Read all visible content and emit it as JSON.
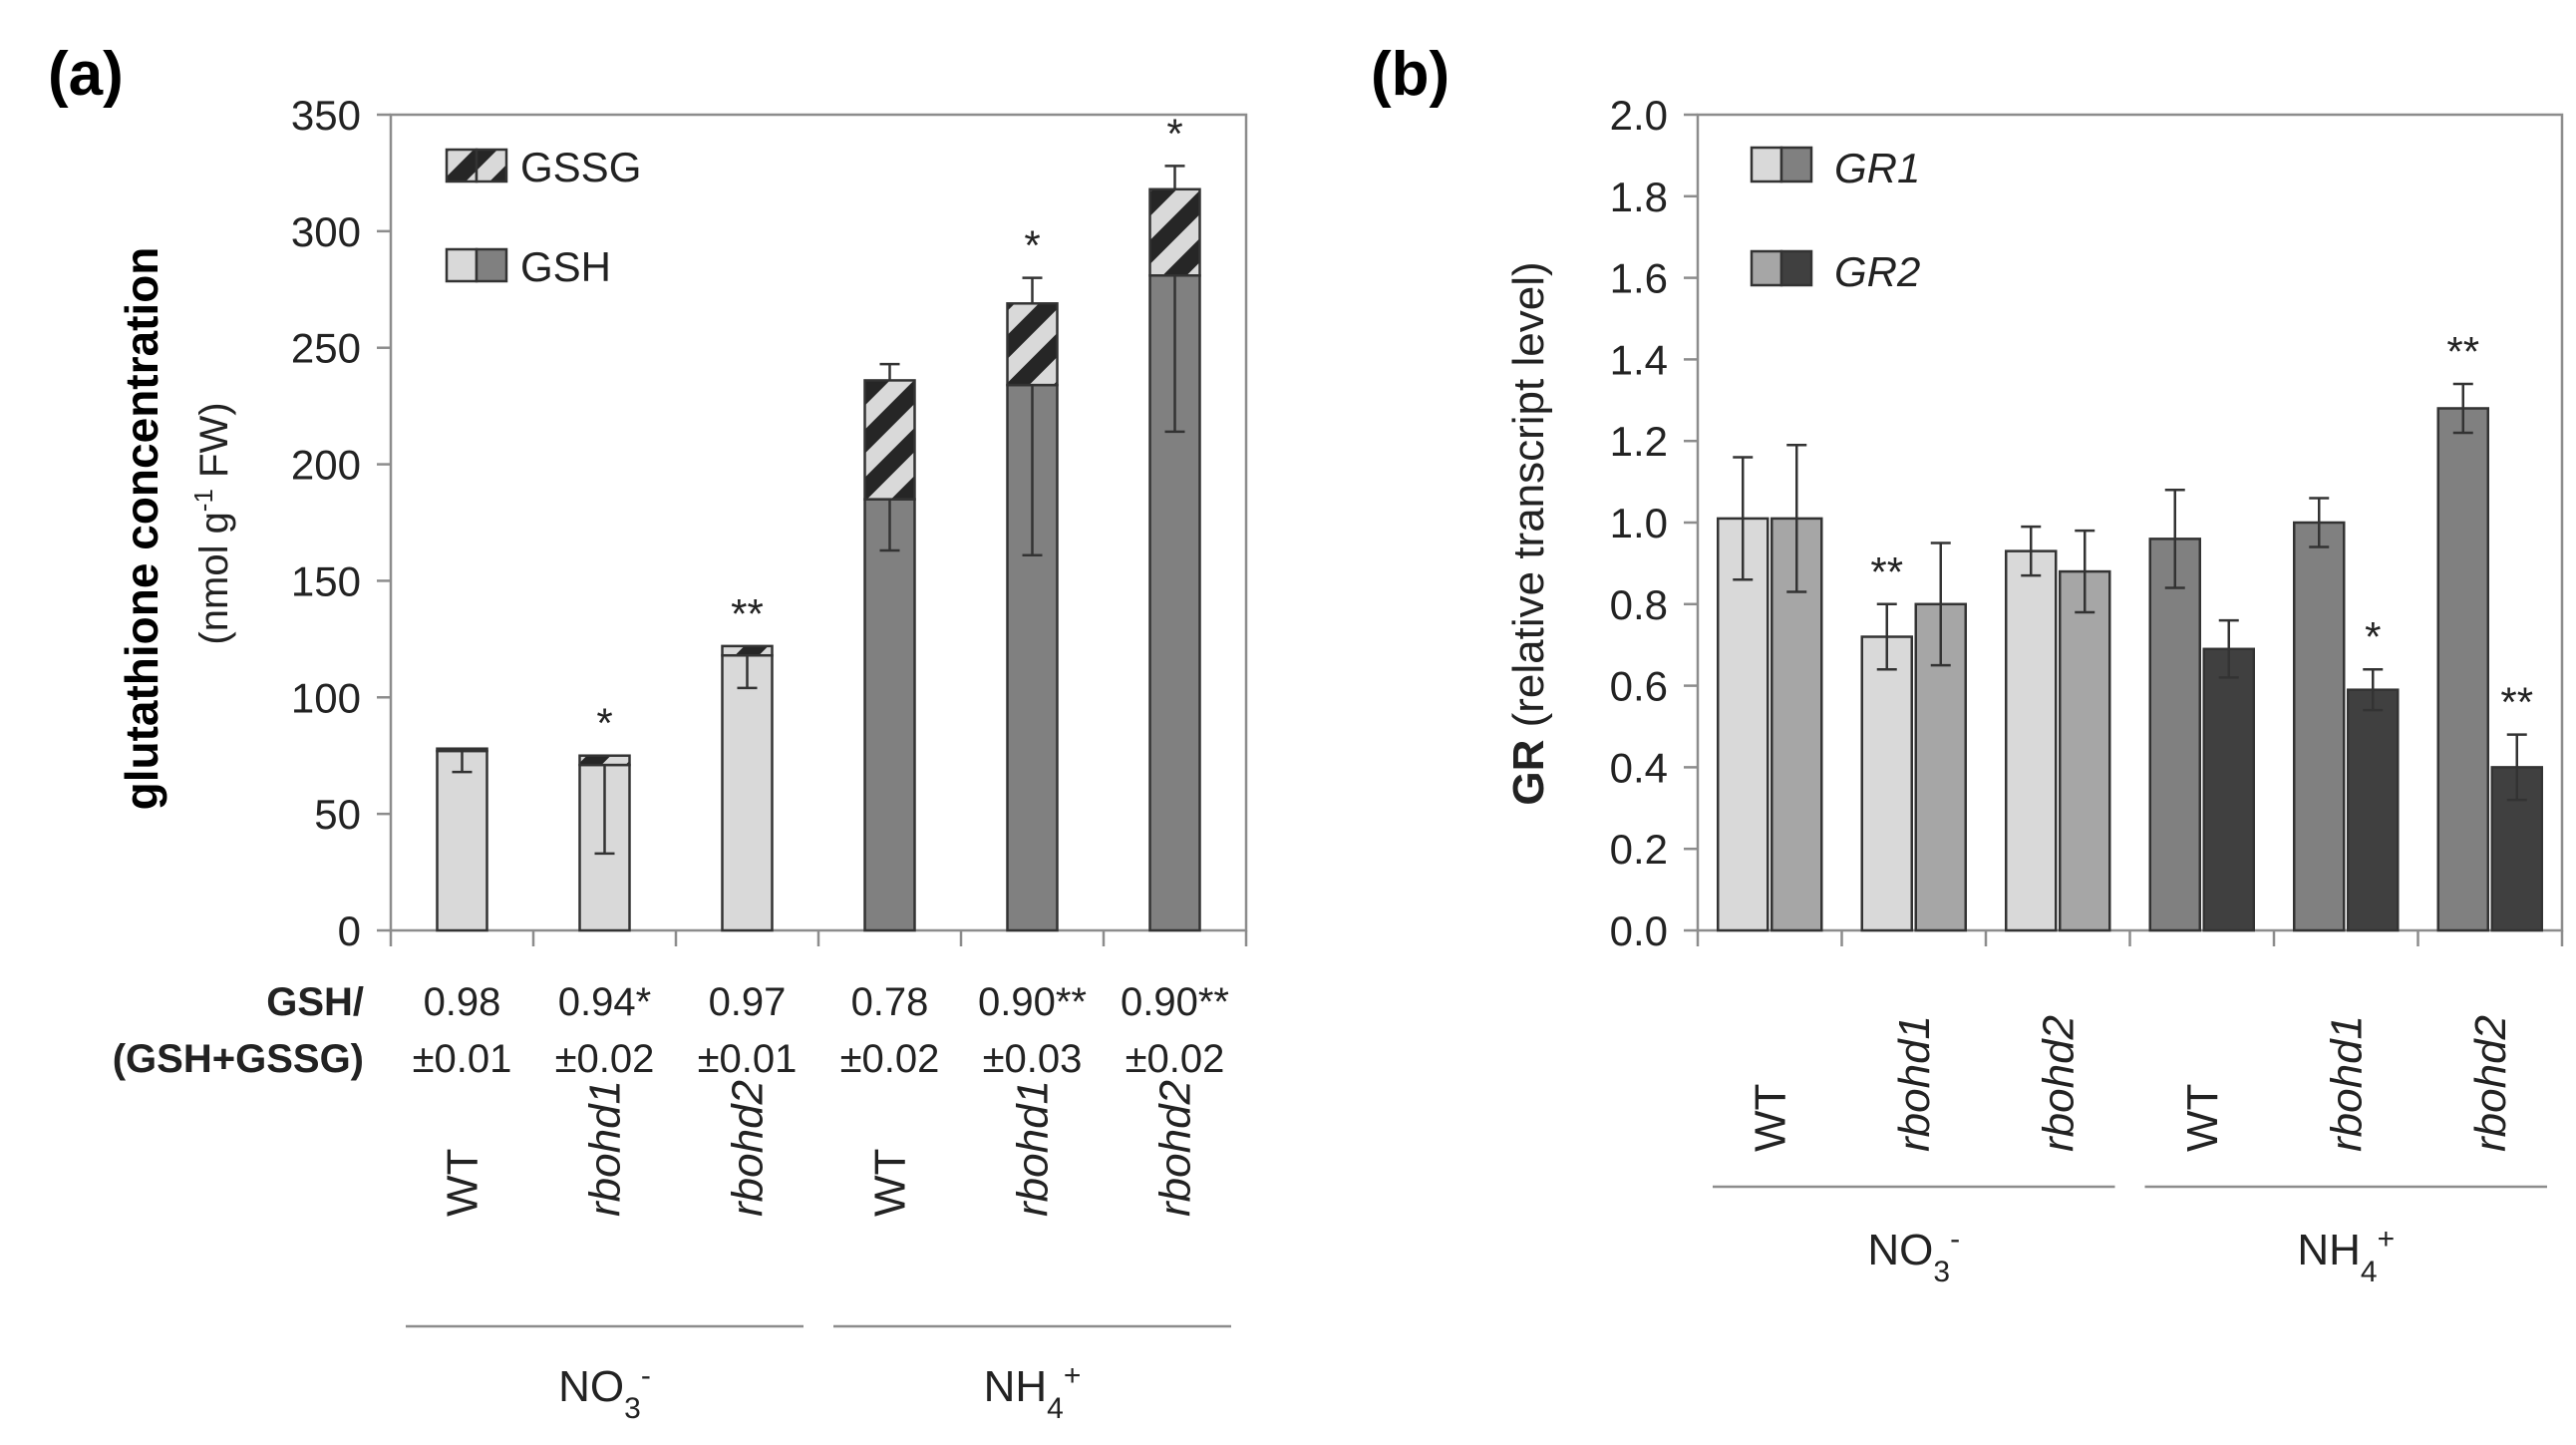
{
  "colors": {
    "gsh_no3": "#d9d9d9",
    "gsh_nh4": "#808080",
    "gr1_no3": "#d9d9d9",
    "gr2_no3": "#a6a6a6",
    "gr1_nh4": "#808080",
    "gr2_nh4": "#404040",
    "hatch_dark": "#262626"
  },
  "panel_a": {
    "label": "(a)",
    "ratio_header": [
      "GSH/",
      "(GSH+GSSG)"
    ],
    "ratios": [
      {
        "value": "0.98",
        "sd": "±0.01"
      },
      {
        "value": "0.94*",
        "sd": "±0.02"
      },
      {
        "value": "0.97",
        "sd": "±0.01"
      },
      {
        "value": "0.78",
        "sd": "±0.02"
      },
      {
        "value": "0.90**",
        "sd": "±0.03"
      },
      {
        "value": "0.90**",
        "sd": "±0.02"
      }
    ]
  },
  "panel_b": {
    "label": "(b)"
  },
  "chart_data": [
    {
      "type": "bar",
      "title": "(a)",
      "stacked": true,
      "ylabel": "glutathione concentration",
      "ylabel_unit_parts": [
        "(nmol g",
        "-1",
        " FW)"
      ],
      "ylim": [
        0,
        350
      ],
      "yticks": [
        "0",
        "50",
        "100",
        "150",
        "200",
        "250",
        "300",
        "350"
      ],
      "categories": [
        "WT",
        "rbohd1",
        "rbohd2",
        "WT",
        "rbohd1",
        "rbohd2"
      ],
      "groups": [
        {
          "label_base": "NO",
          "label_sub": "3",
          "label_sup": "-"
        },
        {
          "label_base": "NH",
          "label_sub": "4",
          "label_sup": "+"
        }
      ],
      "legend": [
        "GSSG",
        "GSH"
      ],
      "series": [
        {
          "name": "GSH",
          "values": [
            77,
            71,
            118,
            185,
            234,
            281
          ],
          "error": [
            9,
            38,
            14,
            22,
            73,
            67
          ]
        },
        {
          "name": "GSSG",
          "values": [
            1,
            4,
            4,
            51,
            35,
            37
          ],
          "error": [
            0,
            0,
            0,
            7,
            11,
            10
          ]
        }
      ],
      "significance": [
        "",
        "*",
        "**",
        "",
        "*",
        "*"
      ]
    },
    {
      "type": "bar",
      "title": "(b)",
      "ylabel_bold": "GR",
      "ylabel": " (relative transcript level)",
      "ylim": [
        0,
        2.0
      ],
      "yticks": [
        "0.0",
        "0.2",
        "0.4",
        "0.6",
        "0.8",
        "1.0",
        "1.2",
        "1.4",
        "1.6",
        "1.8",
        "2.0"
      ],
      "categories": [
        "WT",
        "rbohd1",
        "rbohd2",
        "WT",
        "rbohd1",
        "rbohd2"
      ],
      "groups": [
        {
          "label_base": "NO",
          "label_sub": "3",
          "label_sup": "-"
        },
        {
          "label_base": "NH",
          "label_sub": "4",
          "label_sup": "+"
        }
      ],
      "legend": [
        "GR1",
        "GR2"
      ],
      "series": [
        {
          "name": "GR1",
          "values": [
            1.01,
            0.72,
            0.93,
            0.96,
            1.0,
            1.28
          ],
          "error": [
            0.15,
            0.08,
            0.06,
            0.12,
            0.06,
            0.06
          ],
          "significance": [
            "",
            "**",
            "",
            "",
            "",
            "**"
          ]
        },
        {
          "name": "GR2",
          "values": [
            1.01,
            0.8,
            0.88,
            0.69,
            0.59,
            0.4
          ],
          "error": [
            0.18,
            0.15,
            0.1,
            0.07,
            0.05,
            0.08
          ],
          "significance": [
            "",
            "",
            "",
            "",
            "*",
            "**"
          ]
        }
      ]
    }
  ]
}
